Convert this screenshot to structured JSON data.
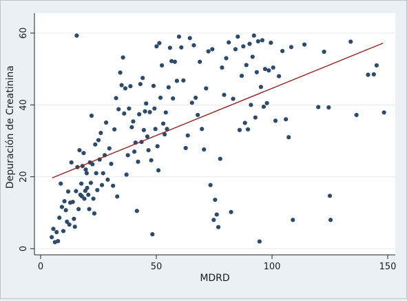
{
  "chart_data": {
    "type": "scatter",
    "xlabel": "MDRD",
    "ylabel": "Depuración de Creatinina",
    "xlim": [
      0,
      150
    ],
    "ylim": [
      0,
      60
    ],
    "x_ticks": [
      0,
      50,
      100,
      150
    ],
    "y_ticks": [
      0,
      20,
      40,
      60
    ],
    "grid": "horizontal",
    "colors": {
      "points": "#2c4a6b",
      "fit_line": "#9a1f1f",
      "plot_bg": "#ffffff",
      "page_bg": "#eaf0f4"
    },
    "fit_line": {
      "x": [
        5,
        148
      ],
      "y": [
        19.7,
        57.2
      ]
    },
    "points": [
      {
        "x": 4.8,
        "y": 3.2
      },
      {
        "x": 5.5,
        "y": 5.5
      },
      {
        "x": 6.2,
        "y": 1.8
      },
      {
        "x": 6.9,
        "y": 4.6
      },
      {
        "x": 7.5,
        "y": 2.1
      },
      {
        "x": 8.1,
        "y": 8.6
      },
      {
        "x": 8.7,
        "y": 18.1
      },
      {
        "x": 9.2,
        "y": 11.6
      },
      {
        "x": 9.8,
        "y": 4.9
      },
      {
        "x": 10.3,
        "y": 13.2
      },
      {
        "x": 10.9,
        "y": 10.7
      },
      {
        "x": 11.4,
        "y": 7.5
      },
      {
        "x": 11.9,
        "y": 15.9
      },
      {
        "x": 12.4,
        "y": 6.7
      },
      {
        "x": 12.8,
        "y": 12.8
      },
      {
        "x": 13.3,
        "y": 24.0
      },
      {
        "x": 13.9,
        "y": 13.0
      },
      {
        "x": 14.4,
        "y": 8.3
      },
      {
        "x": 14.8,
        "y": 6.1
      },
      {
        "x": 15.3,
        "y": 16.0
      },
      {
        "x": 15.6,
        "y": 59.3
      },
      {
        "x": 15.9,
        "y": 22.7
      },
      {
        "x": 16.4,
        "y": 11.0
      },
      {
        "x": 16.8,
        "y": 27.4
      },
      {
        "x": 17.2,
        "y": 15.0
      },
      {
        "x": 17.6,
        "y": 18.1
      },
      {
        "x": 17.8,
        "y": 14.6
      },
      {
        "x": 18.1,
        "y": 23.0
      },
      {
        "x": 18.6,
        "y": 26.6
      },
      {
        "x": 18.9,
        "y": 13.9
      },
      {
        "x": 19.3,
        "y": 16.1
      },
      {
        "x": 19.5,
        "y": 22.0
      },
      {
        "x": 19.9,
        "y": 21.0
      },
      {
        "x": 20.1,
        "y": 16.9
      },
      {
        "x": 20.6,
        "y": 15.0
      },
      {
        "x": 21.0,
        "y": 11.0
      },
      {
        "x": 21.3,
        "y": 24.0
      },
      {
        "x": 21.7,
        "y": 18.3
      },
      {
        "x": 22.0,
        "y": 37.0
      },
      {
        "x": 22.4,
        "y": 23.5
      },
      {
        "x": 22.8,
        "y": 13.9
      },
      {
        "x": 23.2,
        "y": 9.8
      },
      {
        "x": 23.6,
        "y": 29.0
      },
      {
        "x": 24.0,
        "y": 21.0
      },
      {
        "x": 24.5,
        "y": 16.3
      },
      {
        "x": 25.0,
        "y": 30.2
      },
      {
        "x": 25.5,
        "y": 24.8
      },
      {
        "x": 26.0,
        "y": 32.2
      },
      {
        "x": 26.5,
        "y": 17.7
      },
      {
        "x": 27.0,
        "y": 21.0
      },
      {
        "x": 27.7,
        "y": 26.0
      },
      {
        "x": 28.3,
        "y": 35.1
      },
      {
        "x": 29.0,
        "y": 19.2
      },
      {
        "x": 29.7,
        "y": 27.9
      },
      {
        "x": 30.5,
        "y": 23.6
      },
      {
        "x": 31.3,
        "y": 17.5
      },
      {
        "x": 31.9,
        "y": 33.2
      },
      {
        "x": 32.6,
        "y": 41.9
      },
      {
        "x": 33.1,
        "y": 14.5
      },
      {
        "x": 33.7,
        "y": 38.8
      },
      {
        "x": 34.4,
        "y": 49.0
      },
      {
        "x": 35.0,
        "y": 45.5
      },
      {
        "x": 35.6,
        "y": 53.2
      },
      {
        "x": 36.1,
        "y": 37.6
      },
      {
        "x": 36.6,
        "y": 44.6
      },
      {
        "x": 37.1,
        "y": 20.6
      },
      {
        "x": 37.7,
        "y": 26.0
      },
      {
        "x": 38.2,
        "y": 39.0
      },
      {
        "x": 38.8,
        "y": 45.2
      },
      {
        "x": 39.4,
        "y": 33.8
      },
      {
        "x": 40.0,
        "y": 35.4
      },
      {
        "x": 40.5,
        "y": 27.0
      },
      {
        "x": 41.0,
        "y": 29.5
      },
      {
        "x": 41.6,
        "y": 10.5
      },
      {
        "x": 42.1,
        "y": 24.2
      },
      {
        "x": 42.6,
        "y": 37.4
      },
      {
        "x": 43.1,
        "y": 45.8
      },
      {
        "x": 43.6,
        "y": 29.7
      },
      {
        "x": 44.1,
        "y": 47.5
      },
      {
        "x": 44.6,
        "y": 33.0
      },
      {
        "x": 45.1,
        "y": 38.2
      },
      {
        "x": 45.6,
        "y": 40.4
      },
      {
        "x": 46.1,
        "y": 31.2
      },
      {
        "x": 46.6,
        "y": 27.4
      },
      {
        "x": 47.2,
        "y": 38.0
      },
      {
        "x": 47.8,
        "y": 24.6
      },
      {
        "x": 48.3,
        "y": 4.0
      },
      {
        "x": 48.8,
        "y": 45.3
      },
      {
        "x": 49.2,
        "y": 39.0
      },
      {
        "x": 49.6,
        "y": 33.3
      },
      {
        "x": 50.1,
        "y": 56.3
      },
      {
        "x": 50.5,
        "y": 28.5
      },
      {
        "x": 50.9,
        "y": 21.8
      },
      {
        "x": 51.3,
        "y": 57.2
      },
      {
        "x": 51.8,
        "y": 42.0
      },
      {
        "x": 52.4,
        "y": 51.0
      },
      {
        "x": 53.0,
        "y": 34.8
      },
      {
        "x": 53.6,
        "y": 31.8
      },
      {
        "x": 54.1,
        "y": 37.9
      },
      {
        "x": 54.6,
        "y": 33.3
      },
      {
        "x": 55.3,
        "y": 44.9
      },
      {
        "x": 55.9,
        "y": 55.9
      },
      {
        "x": 56.6,
        "y": 52.2
      },
      {
        "x": 57.2,
        "y": 41.8
      },
      {
        "x": 58.0,
        "y": 52.0
      },
      {
        "x": 58.9,
        "y": 46.7
      },
      {
        "x": 59.8,
        "y": 59.0
      },
      {
        "x": 60.8,
        "y": 56.0
      },
      {
        "x": 61.7,
        "y": 46.8
      },
      {
        "x": 62.7,
        "y": 28.0
      },
      {
        "x": 63.6,
        "y": 31.5
      },
      {
        "x": 64.5,
        "y": 58.6
      },
      {
        "x": 65.4,
        "y": 40.6
      },
      {
        "x": 66.2,
        "y": 56.6
      },
      {
        "x": 67.0,
        "y": 42.0
      },
      {
        "x": 67.9,
        "y": 37.2
      },
      {
        "x": 68.8,
        "y": 52.0
      },
      {
        "x": 69.7,
        "y": 33.3
      },
      {
        "x": 70.6,
        "y": 27.6
      },
      {
        "x": 71.5,
        "y": 44.6
      },
      {
        "x": 72.5,
        "y": 54.9
      },
      {
        "x": 73.4,
        "y": 17.7
      },
      {
        "x": 74.2,
        "y": 55.5
      },
      {
        "x": 74.8,
        "y": 8.0
      },
      {
        "x": 75.4,
        "y": 13.6
      },
      {
        "x": 76.1,
        "y": 9.5
      },
      {
        "x": 76.8,
        "y": 6.0
      },
      {
        "x": 77.6,
        "y": 25.0
      },
      {
        "x": 78.4,
        "y": 50.4
      },
      {
        "x": 79.3,
        "y": 42.8
      },
      {
        "x": 80.2,
        "y": 53.0
      },
      {
        "x": 81.3,
        "y": 57.4
      },
      {
        "x": 82.3,
        "y": 10.2
      },
      {
        "x": 83.2,
        "y": 41.7
      },
      {
        "x": 84.2,
        "y": 55.5
      },
      {
        "x": 85.2,
        "y": 59.0
      },
      {
        "x": 86.0,
        "y": 33.0
      },
      {
        "x": 86.9,
        "y": 48.1
      },
      {
        "x": 87.6,
        "y": 56.3
      },
      {
        "x": 88.3,
        "y": 35.0
      },
      {
        "x": 88.9,
        "y": 51.1
      },
      {
        "x": 89.6,
        "y": 33.2
      },
      {
        "x": 90.3,
        "y": 57.0
      },
      {
        "x": 90.9,
        "y": 40.0
      },
      {
        "x": 91.6,
        "y": 53.4
      },
      {
        "x": 92.2,
        "y": 59.3
      },
      {
        "x": 92.8,
        "y": 36.5
      },
      {
        "x": 93.4,
        "y": 49.1
      },
      {
        "x": 94.0,
        "y": 57.7
      },
      {
        "x": 94.6,
        "y": 2.0
      },
      {
        "x": 95.2,
        "y": 45.0
      },
      {
        "x": 95.8,
        "y": 58.0
      },
      {
        "x": 96.4,
        "y": 39.5
      },
      {
        "x": 97.0,
        "y": 50.0
      },
      {
        "x": 97.8,
        "y": 40.5
      },
      {
        "x": 98.6,
        "y": 49.6
      },
      {
        "x": 99.5,
        "y": 57.3
      },
      {
        "x": 100.5,
        "y": 50.4
      },
      {
        "x": 101.5,
        "y": 35.6
      },
      {
        "x": 103.0,
        "y": 48.0
      },
      {
        "x": 104.5,
        "y": 55.0
      },
      {
        "x": 106.0,
        "y": 36.0
      },
      {
        "x": 107.2,
        "y": 31.0
      },
      {
        "x": 108.3,
        "y": 56.1
      },
      {
        "x": 109.0,
        "y": 8.0
      },
      {
        "x": 114.0,
        "y": 56.8
      },
      {
        "x": 120.0,
        "y": 39.4
      },
      {
        "x": 122.5,
        "y": 54.8
      },
      {
        "x": 124.5,
        "y": 39.3
      },
      {
        "x": 125.0,
        "y": 14.7
      },
      {
        "x": 125.3,
        "y": 8.0
      },
      {
        "x": 134.0,
        "y": 57.6
      },
      {
        "x": 136.5,
        "y": 37.2
      },
      {
        "x": 141.5,
        "y": 48.4
      },
      {
        "x": 144.0,
        "y": 48.5
      },
      {
        "x": 145.2,
        "y": 51.0
      },
      {
        "x": 148.4,
        "y": 37.9
      }
    ]
  }
}
